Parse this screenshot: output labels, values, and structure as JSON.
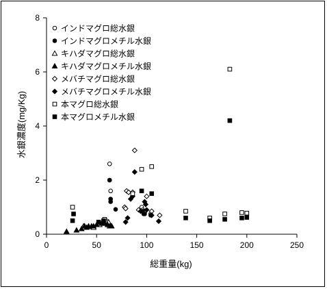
{
  "chart_data": {
    "type": "scatter",
    "xlabel": "総重量(kg)",
    "ylabel": "水銀濃度(mg/Kg)",
    "xlim": [
      0,
      250
    ],
    "ylim": [
      0,
      8
    ],
    "xticks": [
      "0",
      "50",
      "100",
      "150",
      "200",
      "250"
    ],
    "yticks": [
      "0",
      "2",
      "4",
      "6",
      "8"
    ],
    "grid": false,
    "legend": "top-left",
    "series": [
      {
        "name": "インドマグロ総水銀",
        "marker": "circle-open",
        "points": [
          [
            63,
            2.6
          ],
          [
            63,
            2.0
          ],
          [
            64,
            1.6
          ],
          [
            64,
            1.3
          ],
          [
            95,
            1.0
          ],
          [
            96,
            0.9
          ],
          [
            97,
            0.85
          ],
          [
            98,
            0.8
          ],
          [
            104,
            0.75
          ]
        ]
      },
      {
        "name": "インドマグロメチル水銀",
        "marker": "circle-filled",
        "points": [
          [
            63,
            2.0
          ],
          [
            64,
            1.3
          ],
          [
            64,
            1.2
          ],
          [
            69,
            0.92
          ],
          [
            96,
            0.85
          ],
          [
            97,
            0.75
          ],
          [
            98,
            0.75
          ],
          [
            104,
            0.7
          ]
        ]
      },
      {
        "name": "キハダマグロ総水銀",
        "marker": "triangle-open",
        "points": [
          [
            37,
            0.3
          ],
          [
            42,
            0.3
          ],
          [
            47,
            0.25
          ],
          [
            53,
            0.35
          ],
          [
            60,
            0.5
          ],
          [
            62,
            0.45
          ],
          [
            63,
            0.3
          ],
          [
            65,
            0.3
          ]
        ]
      },
      {
        "name": "キハダマグロメチル水銀",
        "marker": "triangle-filled",
        "points": [
          [
            20,
            0.1
          ],
          [
            30,
            0.15
          ],
          [
            35,
            0.2
          ],
          [
            38,
            0.3
          ],
          [
            40,
            0.25
          ],
          [
            42,
            0.28
          ],
          [
            45,
            0.3
          ],
          [
            47,
            0.3
          ],
          [
            50,
            0.35
          ],
          [
            55,
            0.4
          ],
          [
            58,
            0.4
          ],
          [
            61,
            0.35
          ],
          [
            64,
            0.3
          ],
          [
            65,
            0.3
          ]
        ]
      },
      {
        "name": "メバチマグロ総水銀",
        "marker": "diamond-open",
        "points": [
          [
            88,
            3.1
          ],
          [
            80,
            1.6
          ],
          [
            82,
            1.55
          ],
          [
            100,
            1.4
          ],
          [
            78,
            1.0
          ],
          [
            79,
            0.95
          ],
          [
            86,
            1.55
          ],
          [
            92,
            0.9
          ],
          [
            105,
            0.85
          ],
          [
            113,
            0.7
          ]
        ]
      },
      {
        "name": "メバチマグロメチル水銀",
        "marker": "diamond-filled",
        "points": [
          [
            88,
            2.3
          ],
          [
            84,
            1.3
          ],
          [
            86,
            1.4
          ],
          [
            98,
            1.2
          ],
          [
            99,
            1.1
          ],
          [
            81,
            0.6
          ],
          [
            79,
            0.45
          ],
          [
            94,
            0.85
          ],
          [
            100,
            0.9
          ],
          [
            105,
            0.7
          ],
          [
            112,
            0.48
          ]
        ]
      },
      {
        "name": "本マグロ総水銀",
        "marker": "square-open",
        "points": [
          [
            183,
            6.1
          ],
          [
            95,
            2.4
          ],
          [
            105,
            2.5
          ],
          [
            26,
            1.0
          ],
          [
            58,
            0.55
          ],
          [
            86,
            1.5
          ],
          [
            139,
            0.85
          ],
          [
            163,
            0.6
          ],
          [
            178,
            0.75
          ],
          [
            195,
            0.8
          ],
          [
            200,
            0.78
          ]
        ]
      },
      {
        "name": "本マグロメチル水銀",
        "marker": "square-filled",
        "points": [
          [
            183,
            4.2
          ],
          [
            95,
            1.6
          ],
          [
            105,
            1.5
          ],
          [
            26,
            0.5
          ],
          [
            27,
            0.75
          ],
          [
            52,
            0.45
          ],
          [
            57,
            0.5
          ],
          [
            139,
            0.6
          ],
          [
            163,
            0.5
          ],
          [
            178,
            0.55
          ],
          [
            195,
            0.6
          ],
          [
            200,
            0.62
          ]
        ]
      }
    ]
  }
}
